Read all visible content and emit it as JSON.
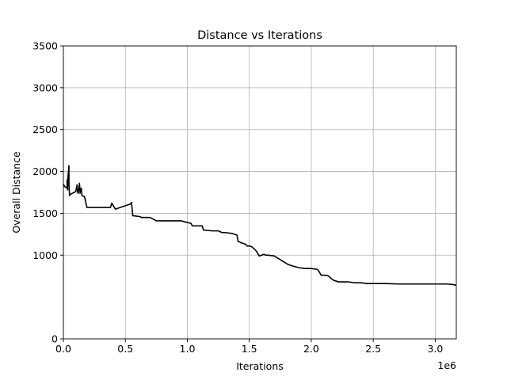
{
  "chart_data": {
    "type": "line",
    "title": "Distance vs Iterations",
    "xlabel": "Iterations",
    "ylabel": "Overall Distance",
    "x_offset_label": "1e6",
    "xlim": [
      0,
      3.17
    ],
    "ylim": [
      0,
      3500
    ],
    "x_ticks": [
      0,
      0.5,
      1.0,
      1.5,
      2.0,
      2.5,
      3.0
    ],
    "x_tick_labels": [
      "0.0",
      "0.5",
      "1.0",
      "1.5",
      "2.0",
      "2.5",
      "3.0"
    ],
    "y_ticks": [
      0,
      1000,
      1500,
      2000,
      2500,
      3000,
      3500
    ],
    "y_tick_labels": [
      "0",
      "1000",
      "1500",
      "2000",
      "2500",
      "3000",
      "3500"
    ],
    "grid": true,
    "line_color": "#000000",
    "series": [
      {
        "x": [
          0.0,
          0.01,
          0.03,
          0.03,
          0.035,
          0.035,
          0.045,
          0.045,
          0.05,
          0.05,
          0.06,
          0.1,
          0.11,
          0.115,
          0.12,
          0.13,
          0.135,
          0.14,
          0.145,
          0.15,
          0.17,
          0.19,
          0.2,
          0.38,
          0.39,
          0.42,
          0.54,
          0.55,
          0.56,
          0.57,
          0.62,
          0.63,
          0.7,
          0.75,
          0.95,
          1.0,
          1.03,
          1.04,
          1.05,
          1.12,
          1.13,
          1.2,
          1.25,
          1.28,
          1.3,
          1.36,
          1.38,
          1.4,
          1.41,
          1.42,
          1.43,
          1.47,
          1.48,
          1.5,
          1.52,
          1.55,
          1.56,
          1.58,
          1.6,
          1.62,
          1.63,
          1.65,
          1.7,
          1.8,
          1.81,
          1.85,
          1.9,
          1.95,
          2.0,
          2.05,
          2.06,
          2.08,
          2.12,
          2.14,
          2.16,
          2.18,
          2.2,
          2.22,
          2.25,
          2.3,
          2.35,
          2.4,
          2.45,
          2.48,
          2.55,
          2.6,
          2.7,
          2.8,
          2.9,
          3.0,
          3.05,
          3.1,
          3.14,
          3.17
        ],
        "y": [
          1850,
          1820,
          1800,
          1900,
          1780,
          1900,
          2070,
          1850,
          1710,
          1720,
          1730,
          1760,
          1840,
          1750,
          1740,
          1860,
          1740,
          1790,
          1800,
          1710,
          1700,
          1570,
          1570,
          1570,
          1620,
          1550,
          1610,
          1630,
          1470,
          1470,
          1460,
          1450,
          1450,
          1410,
          1410,
          1390,
          1380,
          1350,
          1350,
          1350,
          1300,
          1290,
          1290,
          1270,
          1270,
          1260,
          1250,
          1240,
          1160,
          1160,
          1150,
          1130,
          1110,
          1110,
          1100,
          1060,
          1040,
          990,
          1000,
          1010,
          1000,
          1000,
          990,
          900,
          890,
          870,
          850,
          840,
          840,
          830,
          810,
          760,
          760,
          750,
          720,
          700,
          690,
          680,
          680,
          680,
          670,
          670,
          660,
          660,
          660,
          660,
          655,
          655,
          655,
          655,
          655,
          655,
          650,
          640
        ]
      }
    ]
  }
}
